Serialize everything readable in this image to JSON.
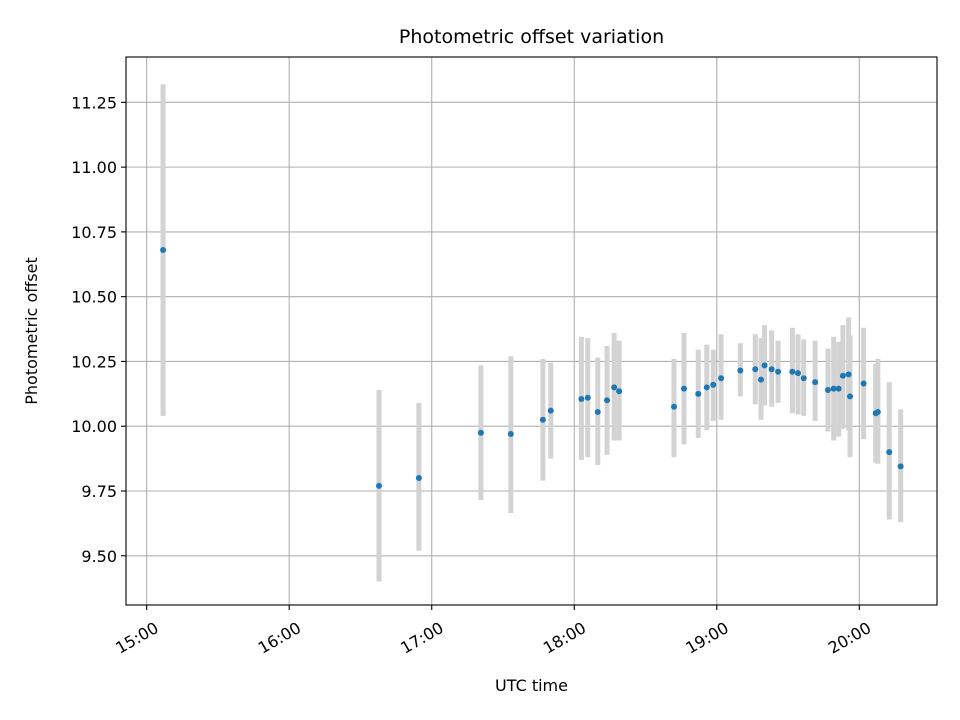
{
  "chart_data": {
    "type": "scatter",
    "title": "Photometric offset variation",
    "xlabel": "UTC time",
    "ylabel": "Photometric offset",
    "x_unit": "hours UTC",
    "xlim": [
      14.855,
      20.545
    ],
    "ylim": [
      9.31,
      11.425
    ],
    "grid": true,
    "x_ticks": [
      {
        "value": 15,
        "label": "15:00"
      },
      {
        "value": 16,
        "label": "16:00"
      },
      {
        "value": 17,
        "label": "17:00"
      },
      {
        "value": 18,
        "label": "18:00"
      },
      {
        "value": 19,
        "label": "19:00"
      },
      {
        "value": 20,
        "label": "20:00"
      }
    ],
    "y_ticks": [
      {
        "value": 9.5,
        "label": "9.50"
      },
      {
        "value": 9.75,
        "label": "9.75"
      },
      {
        "value": 10.0,
        "label": "10.00"
      },
      {
        "value": 10.25,
        "label": "10.25"
      },
      {
        "value": 10.5,
        "label": "10.50"
      },
      {
        "value": 10.75,
        "label": "10.75"
      },
      {
        "value": 11.0,
        "label": "11.00"
      },
      {
        "value": 11.25,
        "label": "11.25"
      }
    ],
    "colors": {
      "point": "#1f77b4",
      "errorbar": "#d3d3d3",
      "grid": "#b0b0b0"
    },
    "points": [
      {
        "x": 15.115,
        "y": 10.68,
        "lo": 10.04,
        "hi": 11.32
      },
      {
        "x": 16.63,
        "y": 9.77,
        "lo": 9.4,
        "hi": 10.14
      },
      {
        "x": 16.91,
        "y": 9.8,
        "lo": 9.52,
        "hi": 10.09
      },
      {
        "x": 17.345,
        "y": 9.975,
        "lo": 9.715,
        "hi": 10.235
      },
      {
        "x": 17.555,
        "y": 9.97,
        "lo": 9.665,
        "hi": 10.27
      },
      {
        "x": 17.78,
        "y": 10.025,
        "lo": 9.79,
        "hi": 10.26
      },
      {
        "x": 17.835,
        "y": 10.06,
        "lo": 9.875,
        "hi": 10.245
      },
      {
        "x": 18.05,
        "y": 10.105,
        "lo": 9.87,
        "hi": 10.345
      },
      {
        "x": 18.095,
        "y": 10.11,
        "lo": 9.88,
        "hi": 10.34
      },
      {
        "x": 18.165,
        "y": 10.055,
        "lo": 9.85,
        "hi": 10.265
      },
      {
        "x": 18.23,
        "y": 10.1,
        "lo": 9.89,
        "hi": 10.31
      },
      {
        "x": 18.28,
        "y": 10.15,
        "lo": 9.945,
        "hi": 10.36
      },
      {
        "x": 18.315,
        "y": 10.135,
        "lo": 9.945,
        "hi": 10.33
      },
      {
        "x": 18.7,
        "y": 10.075,
        "lo": 9.88,
        "hi": 10.26
      },
      {
        "x": 18.77,
        "y": 10.145,
        "lo": 9.93,
        "hi": 10.36
      },
      {
        "x": 18.87,
        "y": 10.125,
        "lo": 9.955,
        "hi": 10.295
      },
      {
        "x": 18.93,
        "y": 10.15,
        "lo": 9.985,
        "hi": 10.315
      },
      {
        "x": 18.975,
        "y": 10.16,
        "lo": 10.02,
        "hi": 10.295
      },
      {
        "x": 19.03,
        "y": 10.185,
        "lo": 10.025,
        "hi": 10.355
      },
      {
        "x": 19.165,
        "y": 10.215,
        "lo": 10.115,
        "hi": 10.32
      },
      {
        "x": 19.27,
        "y": 10.22,
        "lo": 10.085,
        "hi": 10.355
      },
      {
        "x": 19.31,
        "y": 10.18,
        "lo": 10.025,
        "hi": 10.34
      },
      {
        "x": 19.335,
        "y": 10.235,
        "lo": 10.08,
        "hi": 10.39
      },
      {
        "x": 19.385,
        "y": 10.22,
        "lo": 10.075,
        "hi": 10.37
      },
      {
        "x": 19.43,
        "y": 10.21,
        "lo": 10.09,
        "hi": 10.33
      },
      {
        "x": 19.53,
        "y": 10.21,
        "lo": 10.05,
        "hi": 10.38
      },
      {
        "x": 19.57,
        "y": 10.205,
        "lo": 10.045,
        "hi": 10.355
      },
      {
        "x": 19.61,
        "y": 10.185,
        "lo": 10.04,
        "hi": 10.335
      },
      {
        "x": 19.69,
        "y": 10.17,
        "lo": 10.02,
        "hi": 10.33
      },
      {
        "x": 19.78,
        "y": 10.14,
        "lo": 9.98,
        "hi": 10.3
      },
      {
        "x": 19.82,
        "y": 10.145,
        "lo": 9.945,
        "hi": 10.345
      },
      {
        "x": 19.855,
        "y": 10.145,
        "lo": 9.96,
        "hi": 10.325
      },
      {
        "x": 19.885,
        "y": 10.195,
        "lo": 9.99,
        "hi": 10.39
      },
      {
        "x": 19.925,
        "y": 10.2,
        "lo": 9.985,
        "hi": 10.42
      },
      {
        "x": 19.935,
        "y": 10.115,
        "lo": 9.88,
        "hi": 10.35
      },
      {
        "x": 20.03,
        "y": 10.165,
        "lo": 9.95,
        "hi": 10.38
      },
      {
        "x": 20.115,
        "y": 10.05,
        "lo": 9.86,
        "hi": 10.24
      },
      {
        "x": 20.13,
        "y": 10.055,
        "lo": 9.855,
        "hi": 10.26
      },
      {
        "x": 20.21,
        "y": 9.9,
        "lo": 9.64,
        "hi": 10.17
      },
      {
        "x": 20.29,
        "y": 9.845,
        "lo": 9.63,
        "hi": 10.065
      }
    ]
  }
}
